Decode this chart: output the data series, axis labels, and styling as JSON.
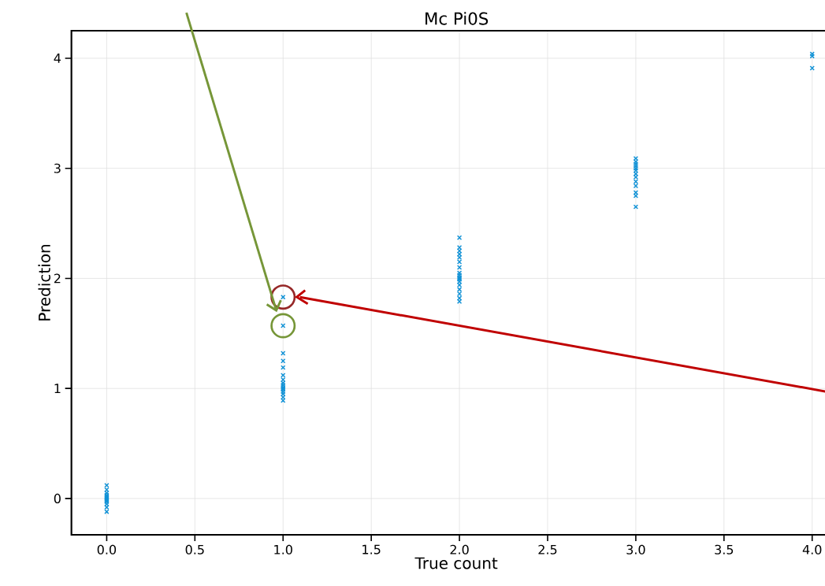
{
  "chart_data": {
    "type": "scatter",
    "title": "Mc Pi0S",
    "xlabel": "True count",
    "ylabel": "Prediction",
    "series": [
      {
        "color": "#1192d6",
        "x": [
          0,
          0,
          0,
          0,
          0,
          0,
          0,
          0,
          0,
          0,
          0,
          0,
          0,
          1,
          1,
          1,
          1,
          1,
          1,
          1,
          1,
          1,
          1,
          1,
          1,
          1,
          1,
          1,
          1,
          2,
          2,
          2,
          2,
          2,
          2,
          2,
          2,
          2,
          2,
          2,
          2,
          2,
          2,
          2,
          2,
          2,
          2,
          3,
          3,
          3,
          3,
          3,
          3,
          3,
          3,
          3,
          3,
          3,
          3,
          3,
          4,
          4,
          4
        ],
        "values": [
          0.12,
          0.08,
          0.05,
          0.03,
          0.02,
          0.01,
          0,
          -0.01,
          -0.02,
          -0.03,
          -0.05,
          -0.08,
          -0.12,
          1.83,
          1.57,
          1.32,
          1.25,
          1.19,
          1.12,
          1.08,
          1.05,
          1.03,
          1.01,
          1.0,
          0.99,
          0.97,
          0.95,
          0.92,
          0.89,
          2.37,
          2.28,
          2.25,
          2.22,
          2.19,
          2.15,
          2.1,
          2.05,
          2.03,
          2.01,
          2.0,
          1.99,
          1.97,
          1.94,
          1.9,
          1.86,
          1.82,
          1.79,
          3.09,
          3.06,
          3.04,
          3.02,
          3.0,
          2.98,
          2.95,
          2.92,
          2.88,
          2.84,
          2.78,
          2.75,
          2.65,
          4.04,
          4.02,
          3.91
        ]
      }
    ],
    "marker": "cross",
    "grid": true,
    "xlim": [
      -0.2,
      4.165
    ],
    "ylim": [
      -0.33,
      4.25
    ],
    "xticks": [
      {
        "value": 0,
        "label": "0.0"
      },
      0.5,
      {
        "value": 1,
        "label": "1.0"
      },
      1.5,
      {
        "value": 2,
        "label": "2.0"
      },
      2.5,
      {
        "value": 3,
        "label": "3.0"
      },
      3.5,
      {
        "value": 4,
        "label": "4.0"
      }
    ],
    "yticks": [
      0,
      1,
      2,
      3,
      4
    ]
  }
}
